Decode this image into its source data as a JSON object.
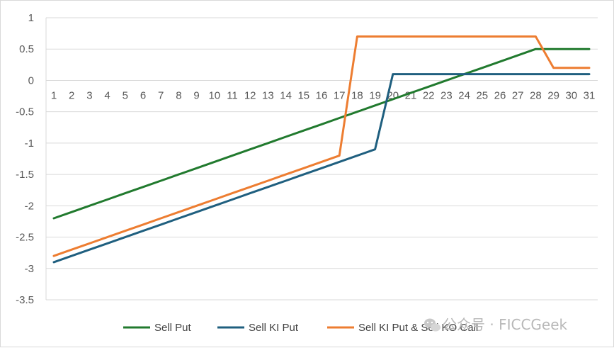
{
  "chart_data": {
    "type": "line",
    "x": [
      1,
      2,
      3,
      4,
      5,
      6,
      7,
      8,
      9,
      10,
      11,
      12,
      13,
      14,
      15,
      16,
      17,
      18,
      19,
      20,
      21,
      22,
      23,
      24,
      25,
      26,
      27,
      28,
      29,
      30,
      31
    ],
    "series": [
      {
        "name": "Sell Put",
        "color": "#217a2e",
        "values": [
          -2.2,
          -2.1,
          -2.0,
          -1.9,
          -1.8,
          -1.7,
          -1.6,
          -1.5,
          -1.4,
          -1.3,
          -1.2,
          -1.1,
          -1.0,
          -0.9,
          -0.8,
          -0.7,
          -0.6,
          -0.5,
          -0.4,
          -0.3,
          -0.2,
          -0.1,
          0.0,
          0.1,
          0.2,
          0.3,
          0.4,
          0.5,
          0.5,
          0.5,
          0.5
        ]
      },
      {
        "name": "Sell KI Put",
        "color": "#1f5f7f",
        "values": [
          -2.9,
          -2.8,
          -2.7,
          -2.6,
          -2.5,
          -2.4,
          -2.3,
          -2.2,
          -2.1,
          -2.0,
          -1.9,
          -1.8,
          -1.7,
          -1.6,
          -1.5,
          -1.4,
          -1.3,
          -1.2,
          -1.1,
          0.1,
          0.1,
          0.1,
          0.1,
          0.1,
          0.1,
          0.1,
          0.1,
          0.1,
          0.1,
          0.1,
          0.1
        ]
      },
      {
        "name": "Sell KI Put & Sell KO Call",
        "color": "#ed7d31",
        "values": [
          -2.8,
          -2.7,
          -2.6,
          -2.5,
          -2.4,
          -2.3,
          -2.2,
          -2.1,
          -2.0,
          -1.9,
          -1.8,
          -1.7,
          -1.6,
          -1.5,
          -1.4,
          -1.3,
          -1.2,
          0.7,
          0.7,
          0.7,
          0.7,
          0.7,
          0.7,
          0.7,
          0.7,
          0.7,
          0.7,
          0.7,
          0.2,
          0.2,
          0.2
        ]
      }
    ],
    "yticks": [
      1,
      0.5,
      0,
      -0.5,
      -1,
      -1.5,
      -2,
      -2.5,
      -3,
      -3.5
    ],
    "ytick_labels": [
      "1",
      "0.5",
      "0",
      "-0.5",
      "-1",
      "-1.5",
      "-2",
      "-2.5",
      "-3",
      "-3.5"
    ],
    "ylim": [
      -3.5,
      1
    ],
    "xlim": [
      1,
      31
    ],
    "title": "",
    "xlabel": "",
    "ylabel": "",
    "grid": "horizontal",
    "legend_position": "bottom"
  },
  "watermark": {
    "text": "公众号 · FICCGeek",
    "icon": "wechat-icon"
  }
}
